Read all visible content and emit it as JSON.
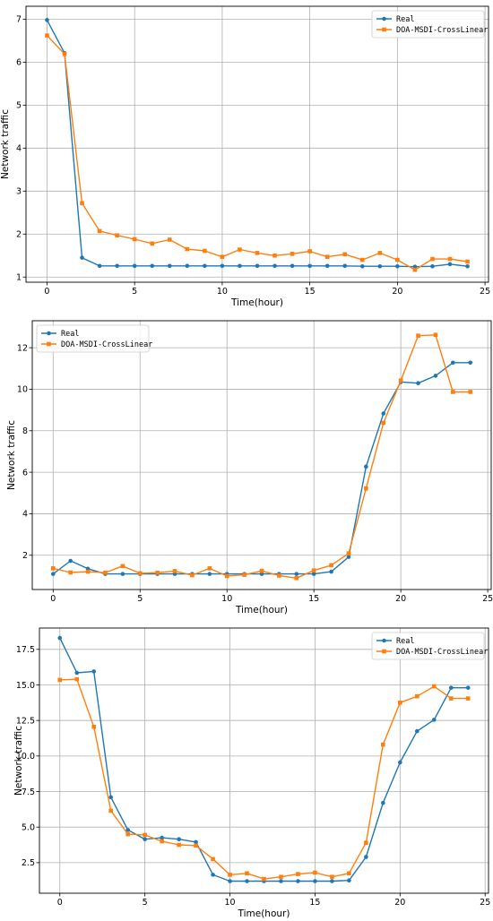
{
  "colors": {
    "real": "#1f77b4",
    "pred": "#ff7f0e"
  },
  "chart_data": [
    {
      "type": "line",
      "xlabel": "Time(hour)",
      "ylabel": "Network traffic",
      "xlim": [
        -1.2,
        25.2
      ],
      "ylim": [
        0.88,
        7.3
      ],
      "xticks": [
        0,
        5,
        10,
        15,
        20,
        25
      ],
      "yticks": [
        1,
        2,
        3,
        4,
        5,
        6,
        7
      ],
      "grid": true,
      "legend": "top-right",
      "x": [
        0,
        1,
        2,
        3,
        4,
        5,
        6,
        7,
        8,
        9,
        10,
        11,
        12,
        13,
        14,
        15,
        16,
        17,
        18,
        19,
        20,
        21,
        22,
        23,
        24
      ],
      "series": [
        {
          "name": "Real",
          "color": "#1f77b4",
          "marker": "circle",
          "values": [
            6.98,
            6.21,
            1.45,
            1.26,
            1.26,
            1.26,
            1.26,
            1.26,
            1.26,
            1.26,
            1.26,
            1.26,
            1.26,
            1.26,
            1.26,
            1.26,
            1.26,
            1.26,
            1.25,
            1.25,
            1.25,
            1.24,
            1.25,
            1.3,
            1.25
          ]
        },
        {
          "name": "DOA-MSDI-CrossLinear",
          "color": "#ff7f0e",
          "marker": "square",
          "values": [
            6.62,
            6.19,
            2.72,
            2.07,
            1.97,
            1.88,
            1.78,
            1.87,
            1.65,
            1.61,
            1.47,
            1.64,
            1.56,
            1.5,
            1.54,
            1.6,
            1.47,
            1.53,
            1.4,
            1.56,
            1.4,
            1.17,
            1.42,
            1.42,
            1.36
          ]
        }
      ]
    },
    {
      "type": "line",
      "xlabel": "Time(hour)",
      "ylabel": "Network traffic",
      "xlim": [
        -1.2,
        25.2
      ],
      "ylim": [
        0.35,
        13.3
      ],
      "xticks": [
        0,
        5,
        10,
        15,
        20,
        25
      ],
      "yticks": [
        2,
        4,
        6,
        8,
        10,
        12
      ],
      "grid": true,
      "legend": "top-left",
      "x": [
        0,
        1,
        2,
        3,
        4,
        5,
        6,
        7,
        8,
        9,
        10,
        11,
        12,
        13,
        14,
        15,
        16,
        17,
        18,
        19,
        20,
        21,
        22,
        23,
        24
      ],
      "series": [
        {
          "name": "Real",
          "color": "#1f77b4",
          "marker": "circle",
          "values": [
            1.1,
            1.73,
            1.35,
            1.1,
            1.1,
            1.1,
            1.1,
            1.1,
            1.1,
            1.1,
            1.1,
            1.1,
            1.1,
            1.1,
            1.1,
            1.1,
            1.21,
            1.92,
            6.27,
            8.83,
            10.35,
            10.29,
            10.65,
            11.28,
            11.28
          ]
        },
        {
          "name": "DOA-MSDI-CrossLinear",
          "color": "#ff7f0e",
          "marker": "square",
          "values": [
            1.37,
            1.17,
            1.21,
            1.16,
            1.48,
            1.13,
            1.16,
            1.24,
            1.04,
            1.37,
            1.0,
            1.06,
            1.25,
            1.02,
            0.9,
            1.27,
            1.52,
            2.09,
            5.22,
            8.38,
            10.42,
            12.58,
            12.62,
            9.87,
            9.87
          ]
        }
      ]
    },
    {
      "type": "line",
      "xlabel": "Time(hour)",
      "ylabel": "Network traffic",
      "xlim": [
        -1.2,
        25.2
      ],
      "ylim": [
        0.35,
        19.0
      ],
      "xticks": [
        0,
        5,
        10,
        15,
        20,
        25
      ],
      "yticks": [
        2.5,
        5.0,
        7.5,
        10.0,
        12.5,
        15.0,
        17.5
      ],
      "ytick_labels": [
        "2.5",
        "5.0",
        "7.5",
        "10.0",
        "12.5",
        "15.0",
        "17.5"
      ],
      "grid": true,
      "legend": "top-right",
      "x": [
        0,
        1,
        2,
        3,
        4,
        5,
        6,
        7,
        8,
        9,
        10,
        11,
        12,
        13,
        14,
        15,
        16,
        17,
        18,
        19,
        20,
        21,
        22,
        23,
        24
      ],
      "series": [
        {
          "name": "Real",
          "color": "#1f77b4",
          "marker": "circle",
          "values": [
            18.3,
            15.85,
            15.95,
            7.1,
            4.8,
            4.15,
            4.25,
            4.15,
            3.95,
            1.65,
            1.2,
            1.2,
            1.2,
            1.2,
            1.2,
            1.2,
            1.2,
            1.25,
            2.9,
            6.7,
            9.55,
            11.75,
            12.55,
            14.8,
            14.8
          ]
        },
        {
          "name": "DOA-MSDI-CrossLinear",
          "color": "#ff7f0e",
          "marker": "square",
          "values": [
            15.35,
            15.4,
            12.05,
            6.15,
            4.5,
            4.45,
            4.0,
            3.75,
            3.7,
            2.75,
            1.65,
            1.75,
            1.35,
            1.5,
            1.7,
            1.8,
            1.5,
            1.75,
            3.9,
            10.8,
            13.75,
            14.2,
            14.9,
            14.05,
            14.05
          ]
        }
      ]
    }
  ]
}
